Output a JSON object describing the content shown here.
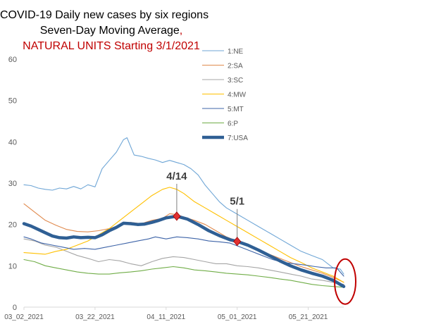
{
  "chart_data": {
    "type": "line",
    "title_lines": [
      "COVID-19 Daily new cases by six regions",
      "Seven-Day Moving Average,",
      "NATURAL UNITS Starting 3/1/2021"
    ],
    "title_colors": [
      "#000000",
      "#000000",
      "#c00000"
    ],
    "title_comma_color": "#c00000",
    "ylim": [
      0,
      60
    ],
    "yticks": [
      0,
      10,
      20,
      30,
      40,
      50,
      60
    ],
    "grid": false,
    "legend_position": "top-right",
    "x_start_date": "2021-03-02",
    "x_end_date": "2021-05-31",
    "x_tick_labels": [
      "03_02_2021",
      "03_22_2021",
      "04_11_2021",
      "05_01_2021",
      "05_21_2021"
    ],
    "series": [
      {
        "name": "1:NE",
        "color": "#6fa6d6",
        "width": 1.1,
        "points": [
          [
            "2021-03-02",
            29.6
          ],
          [
            "2021-03-04",
            29.4
          ],
          [
            "2021-03-06",
            28.8
          ],
          [
            "2021-03-08",
            28.5
          ],
          [
            "2021-03-10",
            28.3
          ],
          [
            "2021-03-12",
            28.8
          ],
          [
            "2021-03-14",
            28.6
          ],
          [
            "2021-03-16",
            29.2
          ],
          [
            "2021-03-18",
            28.6
          ],
          [
            "2021-03-20",
            29.6
          ],
          [
            "2021-03-22",
            29.1
          ],
          [
            "2021-03-24",
            33.5
          ],
          [
            "2021-03-26",
            35.5
          ],
          [
            "2021-03-28",
            37.5
          ],
          [
            "2021-03-30",
            40.5
          ],
          [
            "2021-03-31",
            41.0
          ],
          [
            "2021-04-02",
            36.8
          ],
          [
            "2021-04-04",
            36.5
          ],
          [
            "2021-04-06",
            36.0
          ],
          [
            "2021-04-08",
            35.6
          ],
          [
            "2021-04-10",
            35.0
          ],
          [
            "2021-04-12",
            35.5
          ],
          [
            "2021-04-14",
            35.0
          ],
          [
            "2021-04-16",
            34.5
          ],
          [
            "2021-04-18",
            33.5
          ],
          [
            "2021-04-20",
            32.0
          ],
          [
            "2021-04-22",
            29.5
          ],
          [
            "2021-04-24",
            27.5
          ],
          [
            "2021-04-26",
            25.5
          ],
          [
            "2021-04-28",
            24.0
          ],
          [
            "2021-05-01",
            22.5
          ],
          [
            "2021-05-04",
            21.0
          ],
          [
            "2021-05-07",
            19.5
          ],
          [
            "2021-05-10",
            18.0
          ],
          [
            "2021-05-13",
            16.5
          ],
          [
            "2021-05-16",
            15.0
          ],
          [
            "2021-05-19",
            13.5
          ],
          [
            "2021-05-22",
            12.5
          ],
          [
            "2021-05-25",
            11.5
          ],
          [
            "2021-05-28",
            9.5
          ],
          [
            "2021-05-30",
            9.2
          ],
          [
            "2021-05-31",
            8.0
          ]
        ]
      },
      {
        "name": "2:SA",
        "color": "#e08a4e",
        "width": 1.1,
        "points": [
          [
            "2021-03-02",
            25.0
          ],
          [
            "2021-03-05",
            23.0
          ],
          [
            "2021-03-08",
            21.0
          ],
          [
            "2021-03-11",
            19.8
          ],
          [
            "2021-03-14",
            18.8
          ],
          [
            "2021-03-17",
            18.3
          ],
          [
            "2021-03-20",
            18.2
          ],
          [
            "2021-03-23",
            18.5
          ],
          [
            "2021-03-26",
            19.0
          ],
          [
            "2021-03-29",
            19.8
          ],
          [
            "2021-04-01",
            20.5
          ],
          [
            "2021-04-04",
            20.2
          ],
          [
            "2021-04-07",
            21.0
          ],
          [
            "2021-04-10",
            21.5
          ],
          [
            "2021-04-12",
            22.6
          ],
          [
            "2021-04-14",
            22.4
          ],
          [
            "2021-04-16",
            21.8
          ],
          [
            "2021-04-19",
            21.0
          ],
          [
            "2021-04-22",
            20.0
          ],
          [
            "2021-04-25",
            18.5
          ],
          [
            "2021-04-28",
            17.0
          ],
          [
            "2021-05-01",
            16.0
          ],
          [
            "2021-05-04",
            15.0
          ],
          [
            "2021-05-07",
            14.0
          ],
          [
            "2021-05-10",
            12.8
          ],
          [
            "2021-05-13",
            11.8
          ],
          [
            "2021-05-16",
            10.8
          ],
          [
            "2021-05-19",
            9.8
          ],
          [
            "2021-05-22",
            9.0
          ],
          [
            "2021-05-25",
            8.2
          ],
          [
            "2021-05-28",
            7.2
          ],
          [
            "2021-05-31",
            6.0
          ]
        ]
      },
      {
        "name": "3:SC",
        "color": "#a5a5a5",
        "width": 1.1,
        "points": [
          [
            "2021-03-02",
            16.5
          ],
          [
            "2021-03-05",
            16.0
          ],
          [
            "2021-03-08",
            15.0
          ],
          [
            "2021-03-11",
            14.5
          ],
          [
            "2021-03-14",
            13.5
          ],
          [
            "2021-03-17",
            12.5
          ],
          [
            "2021-03-20",
            11.8
          ],
          [
            "2021-03-23",
            11.0
          ],
          [
            "2021-03-26",
            11.5
          ],
          [
            "2021-03-29",
            11.2
          ],
          [
            "2021-04-01",
            10.5
          ],
          [
            "2021-04-04",
            10.0
          ],
          [
            "2021-04-07",
            11.0
          ],
          [
            "2021-04-10",
            11.8
          ],
          [
            "2021-04-13",
            12.2
          ],
          [
            "2021-04-16",
            12.0
          ],
          [
            "2021-04-19",
            11.5
          ],
          [
            "2021-04-22",
            11.0
          ],
          [
            "2021-04-25",
            10.5
          ],
          [
            "2021-04-28",
            10.5
          ],
          [
            "2021-05-01",
            10.0
          ],
          [
            "2021-05-04",
            9.8
          ],
          [
            "2021-05-07",
            9.5
          ],
          [
            "2021-05-10",
            9.0
          ],
          [
            "2021-05-13",
            8.5
          ],
          [
            "2021-05-16",
            8.0
          ],
          [
            "2021-05-19",
            7.5
          ],
          [
            "2021-05-22",
            6.8
          ],
          [
            "2021-05-25",
            6.5
          ],
          [
            "2021-05-28",
            6.0
          ],
          [
            "2021-05-31",
            5.5
          ]
        ]
      },
      {
        "name": "4:MW",
        "color": "#ffc000",
        "width": 1.1,
        "points": [
          [
            "2021-03-02",
            13.2
          ],
          [
            "2021-03-05",
            13.0
          ],
          [
            "2021-03-08",
            12.8
          ],
          [
            "2021-03-11",
            13.5
          ],
          [
            "2021-03-14",
            14.0
          ],
          [
            "2021-03-17",
            15.0
          ],
          [
            "2021-03-20",
            16.0
          ],
          [
            "2021-03-23",
            17.5
          ],
          [
            "2021-03-26",
            19.0
          ],
          [
            "2021-03-29",
            21.0
          ],
          [
            "2021-04-01",
            23.0
          ],
          [
            "2021-04-04",
            25.0
          ],
          [
            "2021-04-07",
            27.0
          ],
          [
            "2021-04-10",
            28.5
          ],
          [
            "2021-04-12",
            29.0
          ],
          [
            "2021-04-14",
            28.5
          ],
          [
            "2021-04-16",
            27.5
          ],
          [
            "2021-04-19",
            25.5
          ],
          [
            "2021-04-22",
            24.0
          ],
          [
            "2021-04-25",
            22.5
          ],
          [
            "2021-04-28",
            21.0
          ],
          [
            "2021-05-01",
            19.5
          ],
          [
            "2021-05-04",
            18.0
          ],
          [
            "2021-05-07",
            16.5
          ],
          [
            "2021-05-10",
            15.0
          ],
          [
            "2021-05-13",
            13.5
          ],
          [
            "2021-05-16",
            12.0
          ],
          [
            "2021-05-19",
            10.8
          ],
          [
            "2021-05-22",
            9.5
          ],
          [
            "2021-05-25",
            8.5
          ],
          [
            "2021-05-28",
            7.5
          ],
          [
            "2021-05-31",
            6.0
          ]
        ]
      },
      {
        "name": "5:MT",
        "color": "#3e64a8",
        "width": 1.1,
        "points": [
          [
            "2021-03-02",
            17.0
          ],
          [
            "2021-03-04",
            16.5
          ],
          [
            "2021-03-07",
            15.5
          ],
          [
            "2021-03-10",
            15.0
          ],
          [
            "2021-03-13",
            14.5
          ],
          [
            "2021-03-16",
            14.0
          ],
          [
            "2021-03-19",
            14.2
          ],
          [
            "2021-03-22",
            14.0
          ],
          [
            "2021-03-25",
            14.5
          ],
          [
            "2021-03-28",
            15.0
          ],
          [
            "2021-03-31",
            15.5
          ],
          [
            "2021-04-03",
            16.0
          ],
          [
            "2021-04-06",
            16.5
          ],
          [
            "2021-04-08",
            17.0
          ],
          [
            "2021-04-11",
            16.5
          ],
          [
            "2021-04-14",
            17.0
          ],
          [
            "2021-04-17",
            16.8
          ],
          [
            "2021-04-20",
            16.5
          ],
          [
            "2021-04-23",
            16.0
          ],
          [
            "2021-04-26",
            15.8
          ],
          [
            "2021-04-29",
            15.5
          ],
          [
            "2021-05-02",
            14.5
          ],
          [
            "2021-05-05",
            13.5
          ],
          [
            "2021-05-08",
            12.5
          ],
          [
            "2021-05-11",
            11.5
          ],
          [
            "2021-05-14",
            10.8
          ],
          [
            "2021-05-17",
            10.5
          ],
          [
            "2021-05-20",
            10.2
          ],
          [
            "2021-05-23",
            9.8
          ],
          [
            "2021-05-26",
            9.5
          ],
          [
            "2021-05-29",
            9.5
          ],
          [
            "2021-05-31",
            7.5
          ]
        ]
      },
      {
        "name": "6:P",
        "color": "#70ad47",
        "width": 1.1,
        "points": [
          [
            "2021-03-02",
            11.5
          ],
          [
            "2021-03-05",
            11.0
          ],
          [
            "2021-03-08",
            10.0
          ],
          [
            "2021-03-11",
            9.5
          ],
          [
            "2021-03-14",
            9.0
          ],
          [
            "2021-03-17",
            8.5
          ],
          [
            "2021-03-20",
            8.2
          ],
          [
            "2021-03-23",
            8.0
          ],
          [
            "2021-03-26",
            8.0
          ],
          [
            "2021-03-29",
            8.3
          ],
          [
            "2021-04-01",
            8.5
          ],
          [
            "2021-04-04",
            8.8
          ],
          [
            "2021-04-07",
            9.2
          ],
          [
            "2021-04-10",
            9.5
          ],
          [
            "2021-04-13",
            9.8
          ],
          [
            "2021-04-16",
            9.5
          ],
          [
            "2021-04-19",
            9.0
          ],
          [
            "2021-04-22",
            8.8
          ],
          [
            "2021-04-25",
            8.5
          ],
          [
            "2021-04-28",
            8.2
          ],
          [
            "2021-05-01",
            8.0
          ],
          [
            "2021-05-04",
            7.8
          ],
          [
            "2021-05-07",
            7.5
          ],
          [
            "2021-05-10",
            7.2
          ],
          [
            "2021-05-13",
            6.8
          ],
          [
            "2021-05-16",
            6.5
          ],
          [
            "2021-05-19",
            6.0
          ],
          [
            "2021-05-22",
            5.5
          ],
          [
            "2021-05-25",
            5.2
          ],
          [
            "2021-05-28",
            5.0
          ],
          [
            "2021-05-31",
            4.8
          ]
        ]
      },
      {
        "name": "7:USA",
        "color": "#2f5f94",
        "width": 4.5,
        "points": [
          [
            "2021-03-02",
            20.2
          ],
          [
            "2021-03-04",
            19.6
          ],
          [
            "2021-03-06",
            18.8
          ],
          [
            "2021-03-08",
            18.0
          ],
          [
            "2021-03-10",
            17.2
          ],
          [
            "2021-03-12",
            16.8
          ],
          [
            "2021-03-14",
            16.7
          ],
          [
            "2021-03-16",
            17.0
          ],
          [
            "2021-03-18",
            16.8
          ],
          [
            "2021-03-20",
            16.9
          ],
          [
            "2021-03-22",
            16.8
          ],
          [
            "2021-03-24",
            17.5
          ],
          [
            "2021-03-26",
            18.5
          ],
          [
            "2021-03-28",
            19.3
          ],
          [
            "2021-03-30",
            20.3
          ],
          [
            "2021-04-01",
            20.2
          ],
          [
            "2021-04-03",
            20.0
          ],
          [
            "2021-04-05",
            20.1
          ],
          [
            "2021-04-07",
            20.5
          ],
          [
            "2021-04-09",
            21.0
          ],
          [
            "2021-04-11",
            21.6
          ],
          [
            "2021-04-14",
            22.0
          ],
          [
            "2021-04-17",
            21.3
          ],
          [
            "2021-04-20",
            20.0
          ],
          [
            "2021-04-23",
            18.5
          ],
          [
            "2021-04-26",
            17.3
          ],
          [
            "2021-04-29",
            16.3
          ],
          [
            "2021-05-01",
            15.9
          ],
          [
            "2021-05-04",
            15.0
          ],
          [
            "2021-05-07",
            13.8
          ],
          [
            "2021-05-10",
            12.5
          ],
          [
            "2021-05-13",
            11.2
          ],
          [
            "2021-05-16",
            10.0
          ],
          [
            "2021-05-19",
            9.0
          ],
          [
            "2021-05-22",
            8.2
          ],
          [
            "2021-05-25",
            7.5
          ],
          [
            "2021-05-28",
            6.5
          ],
          [
            "2021-05-31",
            5.0
          ]
        ]
      }
    ],
    "annotations": [
      {
        "label": "4/14",
        "date": "2021-04-14",
        "value": 22.0,
        "marker_color": "#e03030",
        "marker": "diamond"
      },
      {
        "label": "5/1",
        "date": "2021-05-01",
        "value": 15.9,
        "marker_color": "#e03030",
        "marker": "diamond"
      }
    ],
    "highlight_ellipse": {
      "color": "#c00000",
      "center_date": "2021-05-31",
      "center_value": 5.5
    }
  }
}
